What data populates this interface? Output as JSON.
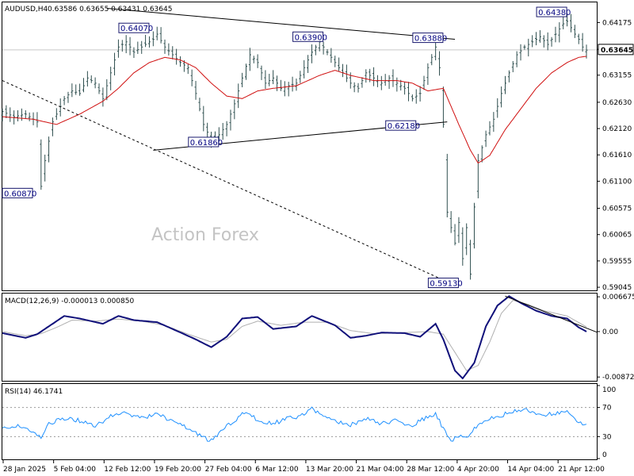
{
  "chart_data": [
    {
      "type": "candlestick",
      "symbol": "AUDUSD,H4",
      "header_values": "0.63586 0.63655 0.63431 0.63645",
      "watermark": "Action Forex",
      "ylim": [
        0.59,
        0.6455
      ],
      "current_price": 0.63645,
      "current_price_label": "0.63645",
      "y_ticks": [
        0.64175,
        0.63655,
        0.63155,
        0.6263,
        0.6212,
        0.6161,
        0.611,
        0.60575,
        0.60065,
        0.59555,
        0.59045
      ],
      "y_tick_labels": [
        "0.64175",
        "0.63655",
        "0.63155",
        "0.62630",
        "0.62120",
        "0.61610",
        "0.61100",
        "0.60575",
        "0.60065",
        "0.59555",
        "0.59045"
      ],
      "x_tick_labels": [
        "28 Jan 2025",
        "5 Feb 04:00",
        "12 Feb 12:00",
        "19 Feb 20:00",
        "27 Feb 04:00",
        "6 Mar 12:00",
        "13 Mar 20:00",
        "21 Mar 04:00",
        "28 Mar 12:00",
        "4 Apr 20:00",
        "14 Apr 04:00",
        "21 Apr 12:00"
      ],
      "close_path": [
        [
          0,
          0.6245
        ],
        [
          3,
          0.6235
        ],
        [
          6,
          0.624
        ],
        [
          9,
          0.6225
        ],
        [
          10,
          0.61
        ],
        [
          11,
          0.615
        ],
        [
          13,
          0.6225
        ],
        [
          16,
          0.627
        ],
        [
          18,
          0.6285
        ],
        [
          20,
          0.628
        ],
        [
          22,
          0.631
        ],
        [
          24,
          0.63
        ],
        [
          26,
          0.627
        ],
        [
          28,
          0.632
        ],
        [
          30,
          0.637
        ],
        [
          32,
          0.638
        ],
        [
          34,
          0.636
        ],
        [
          37,
          0.6375
        ],
        [
          39,
          0.6385
        ],
        [
          40,
          0.6395
        ],
        [
          42,
          0.637
        ],
        [
          44,
          0.6355
        ],
        [
          46,
          0.634
        ],
        [
          48,
          0.633
        ],
        [
          50,
          0.628
        ],
        [
          52,
          0.622
        ],
        [
          54,
          0.619
        ],
        [
          56,
          0.62
        ],
        [
          58,
          0.622
        ],
        [
          60,
          0.626
        ],
        [
          62,
          0.631
        ],
        [
          64,
          0.6355
        ],
        [
          66,
          0.634
        ],
        [
          68,
          0.63
        ],
        [
          70,
          0.631
        ],
        [
          72,
          0.629
        ],
        [
          74,
          0.6295
        ],
        [
          76,
          0.63
        ],
        [
          78,
          0.633
        ],
        [
          80,
          0.636
        ],
        [
          82,
          0.638
        ],
        [
          84,
          0.636
        ],
        [
          86,
          0.634
        ],
        [
          88,
          0.632
        ],
        [
          90,
          0.63
        ],
        [
          92,
          0.629
        ],
        [
          94,
          0.632
        ],
        [
          96,
          0.631
        ],
        [
          98,
          0.63
        ],
        [
          100,
          0.631
        ],
        [
          102,
          0.63
        ],
        [
          104,
          0.629
        ],
        [
          106,
          0.627
        ],
        [
          108,
          0.628
        ],
        [
          110,
          0.633
        ],
        [
          112,
          0.637
        ],
        [
          113,
          0.633
        ],
        [
          114,
          0.622
        ],
        [
          115,
          0.605
        ],
        [
          117,
          0.599
        ],
        [
          118,
          0.603
        ],
        [
          119,
          0.596
        ],
        [
          120,
          0.602
        ],
        [
          121,
          0.593
        ],
        [
          122,
          0.606
        ],
        [
          123,
          0.615
        ],
        [
          125,
          0.62
        ],
        [
          127,
          0.623
        ],
        [
          129,
          0.628
        ],
        [
          131,
          0.632
        ],
        [
          133,
          0.6355
        ],
        [
          135,
          0.637
        ],
        [
          137,
          0.638
        ],
        [
          139,
          0.639
        ],
        [
          141,
          0.6375
        ],
        [
          143,
          0.6395
        ],
        [
          145,
          0.6415
        ],
        [
          146,
          0.642
        ],
        [
          148,
          0.6395
        ],
        [
          149,
          0.6385
        ],
        [
          150,
          0.637
        ],
        [
          151,
          0.6364
        ]
      ],
      "ma_path": [
        [
          0,
          0.6235
        ],
        [
          8,
          0.623
        ],
        [
          14,
          0.622
        ],
        [
          20,
          0.624
        ],
        [
          26,
          0.6265
        ],
        [
          30,
          0.629
        ],
        [
          34,
          0.632
        ],
        [
          38,
          0.634
        ],
        [
          42,
          0.635
        ],
        [
          46,
          0.6345
        ],
        [
          50,
          0.633
        ],
        [
          54,
          0.63
        ],
        [
          58,
          0.6275
        ],
        [
          62,
          0.627
        ],
        [
          66,
          0.6285
        ],
        [
          70,
          0.629
        ],
        [
          76,
          0.6295
        ],
        [
          82,
          0.6315
        ],
        [
          86,
          0.6325
        ],
        [
          90,
          0.6315
        ],
        [
          96,
          0.6305
        ],
        [
          102,
          0.6305
        ],
        [
          106,
          0.63
        ],
        [
          110,
          0.6285
        ],
        [
          114,
          0.629
        ],
        [
          118,
          0.622
        ],
        [
          121,
          0.617
        ],
        [
          123,
          0.6145
        ],
        [
          126,
          0.616
        ],
        [
          130,
          0.621
        ],
        [
          134,
          0.625
        ],
        [
          138,
          0.629
        ],
        [
          142,
          0.632
        ],
        [
          146,
          0.634
        ],
        [
          149,
          0.635
        ],
        [
          151,
          0.6352
        ]
      ],
      "lines": [
        {
          "kind": "trendline",
          "points": [
            [
              27,
              0.6445
            ],
            [
              117,
              0.6385
            ]
          ]
        },
        {
          "kind": "trendline",
          "points": [
            [
              39,
              0.617
            ],
            [
              115,
              0.6225
            ]
          ]
        },
        {
          "kind": "trendline-dashed",
          "points": [
            [
              0,
              0.6305
            ],
            [
              118,
              0.5905
            ]
          ]
        },
        {
          "kind": "ma-line"
        }
      ],
      "annotations": [
        {
          "label": "0.64070",
          "value": 0.6407,
          "x": 34
        },
        {
          "label": "0.63900",
          "value": 0.639,
          "x": 79
        },
        {
          "label": "0.63880",
          "value": 0.6388,
          "x": 110
        },
        {
          "label": "0.64380",
          "value": 0.6438,
          "x": 142
        },
        {
          "label": "0.62180",
          "value": 0.6218,
          "x": 103
        },
        {
          "label": "0.61860",
          "value": 0.6186,
          "x": 52
        },
        {
          "label": "0.60870",
          "value": 0.6087,
          "x": 3
        },
        {
          "label": "0.59130",
          "value": 0.5913,
          "x": 114
        }
      ]
    },
    {
      "type": "line",
      "indicator": "MACD(12,26,9)",
      "header": "MACD(12,26,9) -0.000013 0.000850",
      "ylim": [
        -0.0093,
        0.007
      ],
      "y_tick_labels": [
        "0.006675",
        "0.00",
        "-0.008724"
      ],
      "y_ticks": [
        0.006675,
        0.0,
        -0.008724
      ],
      "macd_path": [
        [
          0,
          -0.0003
        ],
        [
          6,
          -0.0012
        ],
        [
          9,
          -0.0005
        ],
        [
          12,
          0.001
        ],
        [
          16,
          0.003
        ],
        [
          20,
          0.0025
        ],
        [
          26,
          0.0015
        ],
        [
          30,
          0.003
        ],
        [
          34,
          0.0022
        ],
        [
          40,
          0.0018
        ],
        [
          44,
          0.0005
        ],
        [
          50,
          -0.0015
        ],
        [
          54,
          -0.003
        ],
        [
          58,
          -0.001
        ],
        [
          62,
          0.0025
        ],
        [
          66,
          0.0028
        ],
        [
          70,
          0.0005
        ],
        [
          76,
          0.001
        ],
        [
          80,
          0.003
        ],
        [
          86,
          0.0012
        ],
        [
          90,
          -0.0012
        ],
        [
          94,
          -0.0008
        ],
        [
          98,
          -0.0002
        ],
        [
          104,
          -0.0003
        ],
        [
          108,
          -0.001
        ],
        [
          112,
          0.0015
        ],
        [
          114,
          -0.0015
        ],
        [
          117,
          -0.0075
        ],
        [
          119,
          -0.009
        ],
        [
          122,
          -0.006
        ],
        [
          125,
          0.001
        ],
        [
          128,
          0.005
        ],
        [
          131,
          0.0068
        ],
        [
          134,
          0.0055
        ],
        [
          138,
          0.004
        ],
        [
          142,
          0.003
        ],
        [
          146,
          0.0025
        ],
        [
          149,
          0.0008
        ],
        [
          151,
          -0.0
        ]
      ],
      "signal_path": [
        [
          0,
          0.0
        ],
        [
          6,
          -0.0008
        ],
        [
          10,
          -0.0004
        ],
        [
          14,
          0.0008
        ],
        [
          18,
          0.0022
        ],
        [
          24,
          0.002
        ],
        [
          30,
          0.0024
        ],
        [
          36,
          0.002
        ],
        [
          42,
          0.0012
        ],
        [
          48,
          -0.0005
        ],
        [
          54,
          -0.002
        ],
        [
          58,
          -0.0015
        ],
        [
          62,
          0.001
        ],
        [
          66,
          0.002
        ],
        [
          72,
          0.0012
        ],
        [
          78,
          0.0018
        ],
        [
          84,
          0.0018
        ],
        [
          90,
          0.0002
        ],
        [
          96,
          -0.0004
        ],
        [
          104,
          -0.0002
        ],
        [
          110,
          0.0
        ],
        [
          114,
          -0.0005
        ],
        [
          117,
          -0.004
        ],
        [
          120,
          -0.0075
        ],
        [
          123,
          -0.0065
        ],
        [
          126,
          -0.002
        ],
        [
          129,
          0.0035
        ],
        [
          132,
          0.006
        ],
        [
          136,
          0.0052
        ],
        [
          140,
          0.004
        ],
        [
          146,
          0.003
        ],
        [
          151,
          0.0009
        ]
      ],
      "trendline": [
        [
          130,
          0.0068
        ],
        [
          151,
          0.0005
        ]
      ]
    },
    {
      "type": "line",
      "indicator": "RSI(14)",
      "header": "RSI(14) 46.1741",
      "ylim": [
        0,
        100
      ],
      "y_ticks": [
        100,
        70,
        30,
        0
      ],
      "y_tick_labels": [
        "100",
        "70",
        "30",
        "0"
      ],
      "levels": [
        70,
        30
      ],
      "rsi_path": [
        [
          0,
          40
        ],
        [
          4,
          45
        ],
        [
          8,
          38
        ],
        [
          10,
          28
        ],
        [
          12,
          48
        ],
        [
          16,
          55
        ],
        [
          20,
          52
        ],
        [
          24,
          44
        ],
        [
          28,
          58
        ],
        [
          32,
          62
        ],
        [
          36,
          55
        ],
        [
          40,
          62
        ],
        [
          44,
          50
        ],
        [
          48,
          42
        ],
        [
          50,
          35
        ],
        [
          52,
          28
        ],
        [
          54,
          25
        ],
        [
          56,
          35
        ],
        [
          58,
          45
        ],
        [
          62,
          60
        ],
        [
          64,
          63
        ],
        [
          66,
          50
        ],
        [
          70,
          48
        ],
        [
          74,
          55
        ],
        [
          78,
          60
        ],
        [
          80,
          68
        ],
        [
          82,
          62
        ],
        [
          86,
          52
        ],
        [
          90,
          46
        ],
        [
          94,
          55
        ],
        [
          98,
          48
        ],
        [
          102,
          52
        ],
        [
          106,
          45
        ],
        [
          110,
          58
        ],
        [
          112,
          62
        ],
        [
          114,
          40
        ],
        [
          116,
          25
        ],
        [
          118,
          32
        ],
        [
          120,
          28
        ],
        [
          122,
          40
        ],
        [
          124,
          50
        ],
        [
          128,
          58
        ],
        [
          132,
          64
        ],
        [
          136,
          66
        ],
        [
          140,
          60
        ],
        [
          144,
          62
        ],
        [
          146,
          65
        ],
        [
          148,
          55
        ],
        [
          150,
          48
        ],
        [
          151,
          46
        ]
      ]
    }
  ]
}
